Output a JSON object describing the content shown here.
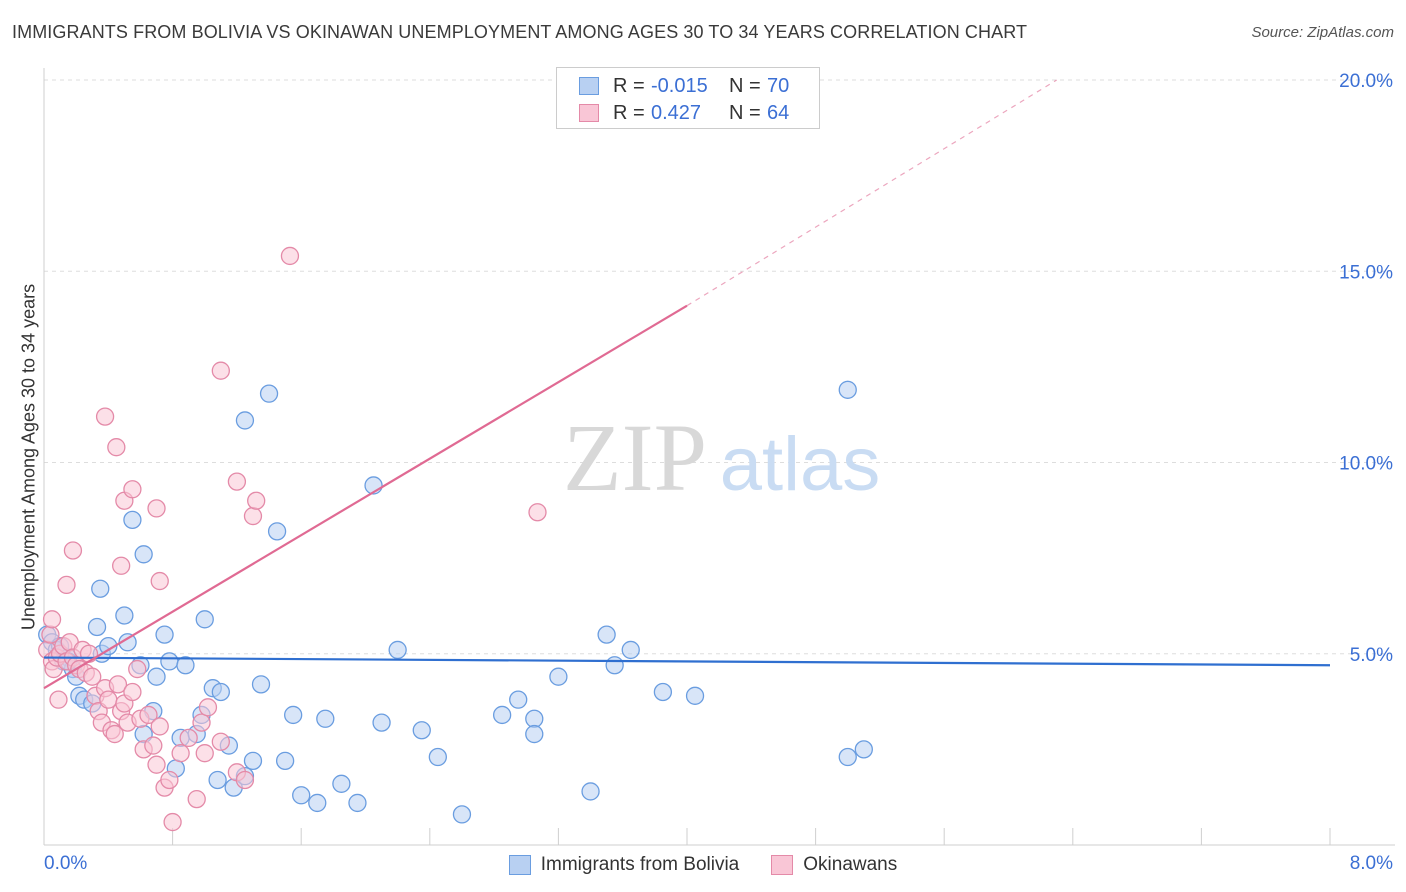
{
  "title": "IMMIGRANTS FROM BOLIVIA VS OKINAWAN UNEMPLOYMENT AMONG AGES 30 TO 34 YEARS CORRELATION CHART",
  "source": "Source: ZipAtlas.com",
  "watermark": {
    "zip": "ZIP",
    "atlas": "atlas"
  },
  "legend": {
    "r_label": "R =",
    "n_label": "N =",
    "rows": [
      {
        "name": "Immigrants from Bolivia",
        "r": "-0.015",
        "n": "70",
        "fill": "#b8d0f2",
        "stroke": "#6a9de0"
      },
      {
        "name": "Okinawans",
        "r": "0.427",
        "n": "64",
        "fill": "#f9c6d6",
        "stroke": "#e48aa8"
      }
    ]
  },
  "chart_data": {
    "type": "scatter",
    "title": "IMMIGRANTS FROM BOLIVIA VS OKINAWAN UNEMPLOYMENT AMONG AGES 30 TO 34 YEARS CORRELATION CHART",
    "xlabel": "",
    "ylabel": "Unemployment Among Ages 30 to 34 years",
    "xlim": [
      0,
      8
    ],
    "ylim": [
      0,
      20
    ],
    "x_tick_labels": [
      "0.0%",
      "8.0%"
    ],
    "y_tick_labels": [
      "5.0%",
      "10.0%",
      "15.0%",
      "20.0%"
    ],
    "y_ticks": [
      5,
      10,
      15,
      20
    ],
    "grid": true,
    "series": [
      {
        "name": "Immigrants from Bolivia",
        "color": "#6a9de0",
        "fill": "#b8d0f2",
        "line_color": "#2f6fd0",
        "trend": {
          "x0": 0,
          "y0": 4.9,
          "x1": 8,
          "y1": 4.7
        },
        "points": [
          [
            0.02,
            5.5
          ],
          [
            0.05,
            5.3
          ],
          [
            0.08,
            5.1
          ],
          [
            0.1,
            5.2
          ],
          [
            0.12,
            4.8
          ],
          [
            0.15,
            4.9
          ],
          [
            0.18,
            4.6
          ],
          [
            0.2,
            4.4
          ],
          [
            0.22,
            3.9
          ],
          [
            0.25,
            3.8
          ],
          [
            0.3,
            3.7
          ],
          [
            0.33,
            5.7
          ],
          [
            0.36,
            5.0
          ],
          [
            0.4,
            5.2
          ],
          [
            0.5,
            6.0
          ],
          [
            0.52,
            5.3
          ],
          [
            0.55,
            8.5
          ],
          [
            0.6,
            4.7
          ],
          [
            0.62,
            2.9
          ],
          [
            0.68,
            3.5
          ],
          [
            0.7,
            4.4
          ],
          [
            0.75,
            5.5
          ],
          [
            0.78,
            4.8
          ],
          [
            0.82,
            2.0
          ],
          [
            0.85,
            2.8
          ],
          [
            0.88,
            4.7
          ],
          [
            0.95,
            2.9
          ],
          [
            0.98,
            3.4
          ],
          [
            1.0,
            5.9
          ],
          [
            1.05,
            4.1
          ],
          [
            1.08,
            1.7
          ],
          [
            1.1,
            4.0
          ],
          [
            1.15,
            2.6
          ],
          [
            1.18,
            1.5
          ],
          [
            1.25,
            1.8
          ],
          [
            1.3,
            2.2
          ],
          [
            1.35,
            4.2
          ],
          [
            1.5,
            2.2
          ],
          [
            1.55,
            3.4
          ],
          [
            1.6,
            1.3
          ],
          [
            1.7,
            1.1
          ],
          [
            1.75,
            3.3
          ],
          [
            1.85,
            1.6
          ],
          [
            1.95,
            1.1
          ],
          [
            2.1,
            3.2
          ],
          [
            2.2,
            5.1
          ],
          [
            2.35,
            3.0
          ],
          [
            2.45,
            2.3
          ],
          [
            2.6,
            0.8
          ],
          [
            2.85,
            3.4
          ],
          [
            2.95,
            3.8
          ],
          [
            3.05,
            3.3
          ],
          [
            3.05,
            2.9
          ],
          [
            3.2,
            4.4
          ],
          [
            3.4,
            1.4
          ],
          [
            3.5,
            5.5
          ],
          [
            3.55,
            4.7
          ],
          [
            3.65,
            5.1
          ],
          [
            3.85,
            4.0
          ],
          [
            4.05,
            3.9
          ],
          [
            5.0,
            2.3
          ],
          [
            5.1,
            2.5
          ],
          [
            0.15,
            4.8
          ],
          [
            0.62,
            7.6
          ],
          [
            0.35,
            6.7
          ],
          [
            1.25,
            11.1
          ],
          [
            1.4,
            11.8
          ],
          [
            1.45,
            8.2
          ],
          [
            2.05,
            9.4
          ],
          [
            5.0,
            11.9
          ]
        ]
      },
      {
        "name": "Okinawans",
        "color": "#e48aa8",
        "fill": "#f9c6d6",
        "line_color": "#e06a93",
        "trend": {
          "x0": 0,
          "y0": 4.1,
          "x1": 4.0,
          "y1": 14.1,
          "dash_to_x": 6.3,
          "dash_to_y": 20.0
        },
        "points": [
          [
            0.02,
            5.1
          ],
          [
            0.04,
            5.5
          ],
          [
            0.05,
            4.8
          ],
          [
            0.06,
            4.6
          ],
          [
            0.08,
            4.9
          ],
          [
            0.1,
            5.0
          ],
          [
            0.12,
            5.2
          ],
          [
            0.14,
            4.8
          ],
          [
            0.16,
            5.3
          ],
          [
            0.18,
            4.9
          ],
          [
            0.2,
            4.7
          ],
          [
            0.22,
            4.6
          ],
          [
            0.24,
            5.1
          ],
          [
            0.26,
            4.5
          ],
          [
            0.28,
            5.0
          ],
          [
            0.3,
            4.4
          ],
          [
            0.32,
            3.9
          ],
          [
            0.34,
            3.5
          ],
          [
            0.36,
            3.2
          ],
          [
            0.38,
            4.1
          ],
          [
            0.4,
            3.8
          ],
          [
            0.42,
            3.0
          ],
          [
            0.44,
            2.9
          ],
          [
            0.46,
            4.2
          ],
          [
            0.48,
            3.5
          ],
          [
            0.5,
            3.7
          ],
          [
            0.52,
            3.2
          ],
          [
            0.55,
            4.0
          ],
          [
            0.58,
            4.6
          ],
          [
            0.6,
            3.3
          ],
          [
            0.62,
            2.5
          ],
          [
            0.65,
            3.4
          ],
          [
            0.68,
            2.6
          ],
          [
            0.7,
            2.1
          ],
          [
            0.72,
            3.1
          ],
          [
            0.75,
            1.5
          ],
          [
            0.78,
            1.7
          ],
          [
            0.8,
            0.6
          ],
          [
            0.85,
            2.4
          ],
          [
            0.9,
            2.8
          ],
          [
            0.95,
            1.2
          ],
          [
            0.98,
            3.2
          ],
          [
            1.0,
            2.4
          ],
          [
            1.02,
            3.6
          ],
          [
            1.1,
            2.7
          ],
          [
            1.2,
            1.9
          ],
          [
            1.25,
            1.7
          ],
          [
            0.14,
            6.8
          ],
          [
            0.18,
            7.7
          ],
          [
            0.45,
            10.4
          ],
          [
            0.38,
            11.2
          ],
          [
            0.5,
            9.0
          ],
          [
            0.55,
            9.3
          ],
          [
            0.7,
            8.8
          ],
          [
            0.72,
            6.9
          ],
          [
            0.48,
            7.3
          ],
          [
            1.1,
            12.4
          ],
          [
            1.2,
            9.5
          ],
          [
            1.3,
            8.6
          ],
          [
            1.32,
            9.0
          ],
          [
            1.53,
            15.4
          ],
          [
            3.07,
            8.7
          ],
          [
            0.05,
            5.9
          ],
          [
            0.09,
            3.8
          ]
        ]
      }
    ]
  }
}
